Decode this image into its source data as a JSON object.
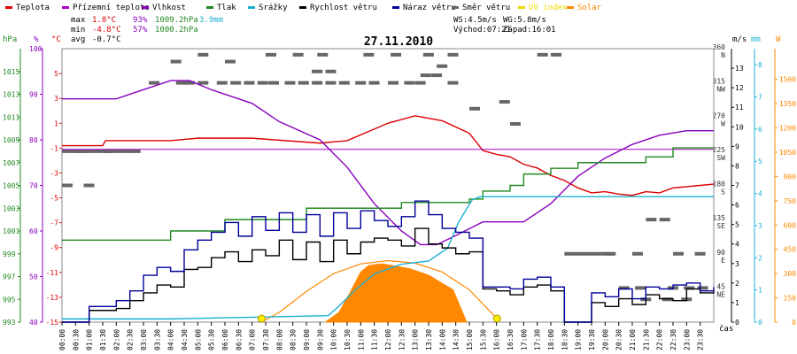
{
  "legend": [
    {
      "label": "Teplota",
      "color": "#dd0000"
    },
    {
      "label": "Přízemní teplota",
      "color": "#aa00cc"
    },
    {
      "label": "Vlhkost",
      "color": "#8800bb"
    },
    {
      "label": "Tlak",
      "color": "#228822"
    },
    {
      "label": "Srážky",
      "color": "#1ab0d0"
    },
    {
      "label": "Rychlost větru",
      "color": "#000000"
    },
    {
      "label": "Náraz větru",
      "color": "#000099"
    },
    {
      "label": "Směr větru",
      "color": "#666666"
    },
    {
      "label": "UV index",
      "color": "#e8d800"
    },
    {
      "label": "Solar",
      "color": "#ff8800"
    }
  ],
  "stats": {
    "max_label": "max",
    "max_temp": "1.8°C",
    "max_hum": "93%",
    "max_press": "1009.2hPa",
    "rain": "3.9mm",
    "min_label": "min",
    "min_temp": "-4.8°C",
    "min_hum": "57%",
    "min_press": "1000.2hPa",
    "avg_label": "avg",
    "avg_temp": "-0.7°C",
    "ws": "WS:4.5m/s",
    "wg": "WG:5.8m/s",
    "sunrise": "Východ:07:21",
    "sunset": "Západ:16:01"
  },
  "chart_data": {
    "type": "line",
    "title": "27.11.2010",
    "x_label": "čas",
    "x_ticks": [
      "00:00",
      "00:30",
      "01:00",
      "01:30",
      "02:00",
      "02:30",
      "03:00",
      "03:30",
      "04:00",
      "04:30",
      "05:00",
      "05:30",
      "06:00",
      "06:30",
      "07:00",
      "07:30",
      "08:00",
      "08:30",
      "09:00",
      "09:30",
      "10:00",
      "10:30",
      "11:00",
      "11:30",
      "12:00",
      "12:30",
      "13:00",
      "13:30",
      "14:00",
      "14:30",
      "15:00",
      "15:30",
      "16:00",
      "16:30",
      "17:00",
      "17:30",
      "18:00",
      "18:30",
      "19:00",
      "19:30",
      "20:00",
      "20:30",
      "21:00",
      "21:30",
      "22:00",
      "22:30",
      "23:00",
      "23:30"
    ],
    "x_range": [
      0,
      24
    ],
    "axes": {
      "pressure": {
        "unit": "hPa",
        "range": [
          993,
          1017
        ],
        "ticks": [
          993,
          995,
          997,
          999,
          1001,
          1003,
          1005,
          1007,
          1009,
          1011,
          1013,
          1015
        ]
      },
      "humidity": {
        "unit": "%",
        "range": [
          40,
          100
        ],
        "ticks": [
          40,
          50,
          60,
          70,
          80,
          90,
          100
        ]
      },
      "temperature": {
        "unit": "°C",
        "range": [
          -15,
          7
        ],
        "ticks": [
          -15,
          -13,
          -11,
          -9,
          -7,
          -5,
          -3,
          -1,
          1,
          3,
          5
        ]
      },
      "wind": {
        "unit": "m/s",
        "range": [
          0,
          14
        ],
        "ticks": [
          0,
          1,
          2,
          3,
          4,
          5,
          6,
          7,
          8,
          9,
          10,
          11,
          12,
          13
        ]
      },
      "rain": {
        "unit": "mm",
        "range": [
          0,
          8.5
        ],
        "ticks": [
          0,
          1,
          2,
          3,
          4,
          5,
          6,
          7,
          8
        ]
      },
      "direction": {
        "labels": [
          {
            "value": 360,
            "text": "360 N"
          },
          {
            "value": 315,
            "text": "315 NW"
          },
          {
            "value": 270,
            "text": "270 W"
          },
          {
            "value": 225,
            "text": "225 SW"
          },
          {
            "value": 180,
            "text": "180 S"
          },
          {
            "value": 135,
            "text": "135 SE"
          },
          {
            "value": 90,
            "text": "90 E"
          },
          {
            "value": 45,
            "text": "45 NE"
          }
        ]
      },
      "solar": {
        "unit": "W",
        "range": [
          0,
          1690
        ],
        "ticks": [
          0,
          150,
          300,
          450,
          600,
          750,
          900,
          1050,
          1200,
          1350,
          1500
        ]
      }
    },
    "series": [
      {
        "name": "Teplota",
        "axis": "temperature",
        "color": "#dd0000",
        "points": [
          [
            0,
            -0.8
          ],
          [
            1.5,
            -0.8
          ],
          [
            1.6,
            -0.4
          ],
          [
            4,
            -0.4
          ],
          [
            5,
            -0.2
          ],
          [
            7,
            -0.2
          ],
          [
            9.5,
            -0.6
          ],
          [
            10.5,
            -0.4
          ],
          [
            12,
            1
          ],
          [
            13,
            1.6
          ],
          [
            14,
            1.2
          ],
          [
            15,
            0.2
          ],
          [
            15.5,
            -1.2
          ],
          [
            16,
            -1.5
          ],
          [
            16.5,
            -1.7
          ],
          [
            17,
            -2.3
          ],
          [
            17.5,
            -2.6
          ],
          [
            18,
            -3.2
          ],
          [
            18.5,
            -3.6
          ],
          [
            19,
            -4.2
          ],
          [
            19.5,
            -4.6
          ],
          [
            20,
            -4.5
          ],
          [
            20.5,
            -4.7
          ],
          [
            21,
            -4.8
          ],
          [
            21.5,
            -4.5
          ],
          [
            22,
            -4.6
          ],
          [
            22.5,
            -4.2
          ],
          [
            23,
            -4.1
          ],
          [
            23.5,
            -4.0
          ],
          [
            24,
            -3.9
          ]
        ]
      },
      {
        "name": "Přízemní teplota",
        "axis": "temperature",
        "color": "#aa00cc",
        "points": [
          [
            0,
            -1.1
          ],
          [
            24,
            -1.1
          ]
        ]
      },
      {
        "name": "Vlhkost",
        "axis": "humidity",
        "color": "#8800bb",
        "points": [
          [
            0,
            89
          ],
          [
            2,
            89
          ],
          [
            3,
            91
          ],
          [
            4,
            93
          ],
          [
            4.7,
            93
          ],
          [
            5.5,
            91
          ],
          [
            7,
            88
          ],
          [
            8,
            84
          ],
          [
            9.5,
            80
          ],
          [
            10.5,
            74
          ],
          [
            11.5,
            66
          ],
          [
            12.5,
            60
          ],
          [
            13.2,
            57
          ],
          [
            13.8,
            57
          ],
          [
            14.5,
            59
          ],
          [
            15.5,
            62
          ],
          [
            17,
            62
          ],
          [
            18,
            66
          ],
          [
            19,
            72
          ],
          [
            20,
            76
          ],
          [
            21,
            79
          ],
          [
            22,
            81
          ],
          [
            23,
            82
          ],
          [
            24,
            82
          ]
        ]
      },
      {
        "name": "Tlak",
        "axis": "pressure",
        "color": "#228822",
        "points": [
          [
            0,
            1000.2
          ],
          [
            3.5,
            1000.2
          ],
          [
            4,
            1001
          ],
          [
            5.5,
            1001
          ],
          [
            6,
            1002
          ],
          [
            8.5,
            1002
          ],
          [
            9,
            1003
          ],
          [
            12,
            1003
          ],
          [
            12.5,
            1003.5
          ],
          [
            15,
            1003.8
          ],
          [
            15.5,
            1004.5
          ],
          [
            16.5,
            1005
          ],
          [
            17,
            1006
          ],
          [
            18,
            1006.5
          ],
          [
            19,
            1007
          ],
          [
            21,
            1007
          ],
          [
            21.5,
            1007.5
          ],
          [
            22,
            1007.5
          ],
          [
            22.5,
            1008.3
          ],
          [
            24,
            1008.3
          ]
        ]
      },
      {
        "name": "Srážky",
        "axis": "rain",
        "color": "#1ab0d0",
        "points": [
          [
            0,
            0.1
          ],
          [
            4,
            0.1
          ],
          [
            9.8,
            0.2
          ],
          [
            10.2,
            0.5
          ],
          [
            10.8,
            1
          ],
          [
            11.5,
            1.5
          ],
          [
            12.5,
            1.8
          ],
          [
            13.5,
            1.9
          ],
          [
            14.2,
            2.3
          ],
          [
            14.6,
            3.1
          ],
          [
            15.1,
            3.8
          ],
          [
            15.4,
            3.9
          ],
          [
            24,
            3.9
          ]
        ]
      },
      {
        "name": "Rychlost větru",
        "axis": "wind",
        "color": "#000000",
        "points": [
          [
            0,
            0
          ],
          [
            1,
            0.6
          ],
          [
            2,
            0.7
          ],
          [
            2.5,
            1.1
          ],
          [
            3,
            1.5
          ],
          [
            3.5,
            1.9
          ],
          [
            4,
            1.8
          ],
          [
            4.5,
            2.7
          ],
          [
            5,
            2.8
          ],
          [
            5.5,
            3.3
          ],
          [
            6,
            3.6
          ],
          [
            6.5,
            3.1
          ],
          [
            7,
            3.7
          ],
          [
            7.5,
            3.4
          ],
          [
            8,
            4.2
          ],
          [
            8.5,
            3.2
          ],
          [
            9,
            4.1
          ],
          [
            9.5,
            3.1
          ],
          [
            10,
            4.2
          ],
          [
            10.5,
            3.5
          ],
          [
            11,
            4.1
          ],
          [
            11.5,
            4.3
          ],
          [
            12,
            4.2
          ],
          [
            12.5,
            3.9
          ],
          [
            13,
            4.8
          ],
          [
            13.5,
            4
          ],
          [
            14,
            3.8
          ],
          [
            14.5,
            3.5
          ],
          [
            15,
            3.6
          ],
          [
            15.5,
            1.7
          ],
          [
            16,
            1.6
          ],
          [
            16.5,
            1.4
          ],
          [
            17,
            1.8
          ],
          [
            17.5,
            1.9
          ],
          [
            18,
            1.6
          ],
          [
            18.5,
            0
          ],
          [
            19,
            0
          ],
          [
            19.5,
            1
          ],
          [
            20,
            0.8
          ],
          [
            20.5,
            1.2
          ],
          [
            21,
            0.9
          ],
          [
            21.5,
            1.4
          ],
          [
            22,
            1.2
          ],
          [
            22.5,
            1.1
          ],
          [
            23,
            1.7
          ],
          [
            23.5,
            1.5
          ],
          [
            24,
            1.6
          ]
        ]
      },
      {
        "name": "Náraz větru",
        "axis": "wind",
        "color": "#000099",
        "points": [
          [
            0,
            0
          ],
          [
            1,
            0.8
          ],
          [
            2,
            1.1
          ],
          [
            2.5,
            1.6
          ],
          [
            3,
            2.4
          ],
          [
            3.5,
            2.8
          ],
          [
            4,
            2.6
          ],
          [
            4.5,
            3.7
          ],
          [
            5,
            4.2
          ],
          [
            5.5,
            4.6
          ],
          [
            6,
            5.1
          ],
          [
            6.5,
            4.4
          ],
          [
            7,
            5.4
          ],
          [
            7.5,
            4.7
          ],
          [
            8,
            5.6
          ],
          [
            8.5,
            4.6
          ],
          [
            9,
            5.5
          ],
          [
            9.5,
            4.4
          ],
          [
            10,
            5.6
          ],
          [
            10.5,
            4.8
          ],
          [
            11,
            5.7
          ],
          [
            11.5,
            5.2
          ],
          [
            12,
            4.9
          ],
          [
            12.5,
            5.4
          ],
          [
            13,
            6.2
          ],
          [
            13.5,
            5.5
          ],
          [
            14,
            4.8
          ],
          [
            14.5,
            4.6
          ],
          [
            15,
            4.3
          ],
          [
            15.5,
            1.8
          ],
          [
            16,
            1.8
          ],
          [
            16.5,
            1.7
          ],
          [
            17,
            2.2
          ],
          [
            17.5,
            2.3
          ],
          [
            18,
            1.8
          ],
          [
            18.5,
            0
          ],
          [
            19,
            0
          ],
          [
            19.5,
            1.5
          ],
          [
            20,
            1.3
          ],
          [
            20.5,
            1.7
          ],
          [
            21,
            1.2
          ],
          [
            21.5,
            1.8
          ],
          [
            22,
            1.7
          ],
          [
            22.5,
            1.9
          ],
          [
            23,
            2
          ],
          [
            23.5,
            1.6
          ],
          [
            24,
            1.8
          ]
        ]
      },
      {
        "name": "Solar",
        "axis": "solar",
        "color": "#ff8800",
        "curve": [
          [
            7.35,
            0
          ],
          [
            8,
            60
          ],
          [
            9,
            190
          ],
          [
            10,
            300
          ],
          [
            11,
            360
          ],
          [
            12,
            380
          ],
          [
            13,
            365
          ],
          [
            14,
            310
          ],
          [
            15,
            200
          ],
          [
            16,
            25
          ],
          [
            16.02,
            0
          ]
        ],
        "measured": [
          [
            9.7,
            0
          ],
          [
            10.2,
            60
          ],
          [
            10.6,
            180
          ],
          [
            11,
            310
          ],
          [
            11.3,
            350
          ],
          [
            11.8,
            360
          ],
          [
            12.3,
            345
          ],
          [
            12.8,
            330
          ],
          [
            13.5,
            290
          ],
          [
            14,
            240
          ],
          [
            14.4,
            200
          ],
          [
            14.7,
            80
          ],
          [
            14.9,
            0
          ]
        ]
      }
    ],
    "wind_direction_samples": [
      [
        0,
        180
      ],
      [
        0.8,
        180
      ],
      [
        1.5,
        225
      ],
      [
        2.5,
        225
      ],
      [
        3.2,
        315
      ],
      [
        4.2,
        315
      ],
      [
        4.5,
        315
      ],
      [
        5,
        315
      ],
      [
        5.7,
        315
      ],
      [
        6.2,
        315
      ],
      [
        6.7,
        315
      ],
      [
        7.2,
        315
      ],
      [
        7.6,
        315
      ],
      [
        8.2,
        315
      ],
      [
        8.7,
        315
      ],
      [
        9.2,
        315
      ],
      [
        9.7,
        315
      ],
      [
        10.2,
        315
      ],
      [
        10.8,
        315
      ],
      [
        11.3,
        315
      ],
      [
        12,
        315
      ],
      [
        13,
        315
      ],
      [
        14.2,
        315
      ],
      [
        13.8,
        337
      ],
      [
        12.6,
        315
      ],
      [
        5,
        352
      ],
      [
        7.5,
        352
      ],
      [
        8.5,
        352
      ],
      [
        9.4,
        352
      ],
      [
        11.1,
        352
      ],
      [
        12.1,
        352
      ],
      [
        13.3,
        352
      ],
      [
        14.2,
        352
      ],
      [
        17.5,
        352
      ],
      [
        18,
        352
      ],
      [
        4,
        343
      ],
      [
        6,
        343
      ],
      [
        9.2,
        330
      ],
      [
        9.7,
        330
      ],
      [
        13.2,
        325
      ],
      [
        13.6,
        325
      ],
      [
        15,
        281
      ],
      [
        16.1,
        290
      ],
      [
        16.5,
        261
      ],
      [
        20,
        90
      ],
      [
        21,
        90
      ],
      [
        22.5,
        90
      ],
      [
        21.5,
        135
      ],
      [
        22,
        135
      ],
      [
        20.5,
        45
      ],
      [
        21.1,
        45
      ],
      [
        22.3,
        45
      ],
      [
        22.9,
        45
      ],
      [
        23.4,
        45
      ],
      [
        21.3,
        30
      ],
      [
        22.1,
        30
      ],
      [
        22.8,
        30
      ],
      [
        23.3,
        90
      ],
      [
        0.5,
        225
      ]
    ],
    "sun_markers": [
      7.35,
      16.02
    ]
  }
}
